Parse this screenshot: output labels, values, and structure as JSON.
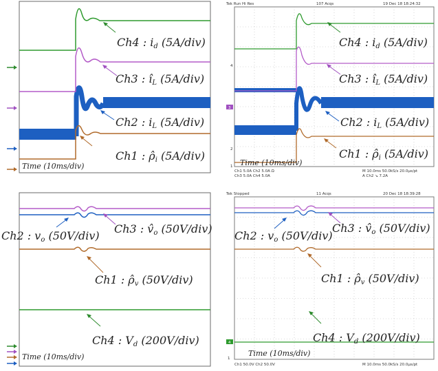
{
  "chart_data": [
    {
      "type": "line",
      "source": "simulation",
      "title": "",
      "xlabel": "Time (10ms/div)",
      "series": [
        {
          "name": "Ch4 : i_d (5A/div)",
          "label": "Ch4 : i_d (5A/div)",
          "color": "#3a9a3a"
        },
        {
          "name": "Ch3 : î_L (5A/div)",
          "label": "Ch3 : î_L (5A/div)",
          "color": "#b45cc8"
        },
        {
          "name": "Ch2 : i_L (5A/div)",
          "label": "Ch2 : i_L (5A/div)",
          "color": "#1d5fc1"
        },
        {
          "name": "Ch1 : ρ̂_i (5A/div)",
          "label": "Ch1 : ρ̂_i (5A/div)",
          "color": "#b06a2a"
        }
      ]
    },
    {
      "type": "line",
      "source": "oscilloscope",
      "title": "",
      "xlabel": "Time (10ms/div)",
      "header": {
        "left": "Tek   Run      Hi Res",
        "middle": "107 Acqs",
        "right": "19 Dec 18 18:24:32"
      },
      "footer": {
        "l1": "Ch1    5.0A         Ch2    5.0A    Ω",
        "l2": "Ch3    5.0A         Ch4    5.0A",
        "r1": "M 10.0ms 50.0kS/s    20.0µs/pt",
        "r2": "A  Ch2  ↘  7.2A"
      },
      "series": [
        {
          "name": "Ch4 : i_d (5A/div)",
          "color": "#3a9a3a"
        },
        {
          "name": "Ch3 : î_L (5A/div)",
          "color": "#b45cc8"
        },
        {
          "name": "Ch2 : i_L (5A/div)",
          "color": "#1d5fc1"
        },
        {
          "name": "Ch1 : ρ̂_i (5A/div)",
          "color": "#b06a2a"
        }
      ]
    },
    {
      "type": "line",
      "source": "simulation",
      "title": "",
      "xlabel": "Time (10ms/div)",
      "series": [
        {
          "name": "Ch3 : v̂_o (50V/div)",
          "color": "#b45cc8"
        },
        {
          "name": "Ch2 : v_o (50V/div)",
          "color": "#1d5fc1"
        },
        {
          "name": "Ch1 : ρ̂_v (50V/div)",
          "color": "#b06a2a"
        },
        {
          "name": "Ch4 : V_d (200V/div)",
          "color": "#3a9a3a"
        }
      ]
    },
    {
      "type": "line",
      "source": "oscilloscope",
      "title": "",
      "xlabel": "Time (10ms/div)",
      "header": {
        "left": "Tek   Stopped",
        "middle": "11 Acqs",
        "right": "20 Dec 18 18:39:28"
      },
      "footer": {
        "l1": "Ch1    50.0V         Ch2    50.0V",
        "l2": "",
        "r1": "M 10.0ms 50.0kS/s    20.0µs/pt",
        "r2": ""
      },
      "series": [
        {
          "name": "Ch3 : v̂_o (50V/div)",
          "color": "#b45cc8"
        },
        {
          "name": "Ch2 : v_o (50V/div)",
          "color": "#1d5fc1"
        },
        {
          "name": "Ch1 : ρ̂_v (50V/div)",
          "color": "#b06a2a"
        },
        {
          "name": "Ch4 : V_d (200V/div)",
          "color": "#3a9a3a"
        }
      ]
    }
  ],
  "labels": {
    "tl": {
      "ch4": {
        "pre": "Ch4 : ",
        "sym": "i",
        "sub": "d",
        "post": "  (5A/div)"
      },
      "ch3": {
        "pre": "Ch3 : ",
        "sym": "î",
        "sub": "L",
        "post": "  (5A/div)"
      },
      "ch2": {
        "pre": "Ch2 : ",
        "sym": "i",
        "sub": "L",
        "post": "  (5A/div)"
      },
      "ch1": {
        "pre": "Ch1 : ",
        "sym": "ρ̂",
        "sub": "i",
        "post": "  (5A/div)"
      },
      "time": "Time (10ms/div)"
    },
    "tr": {
      "ch4": {
        "pre": "Ch4 : ",
        "sym": "i",
        "sub": "d",
        "post": "  (5A/div)"
      },
      "ch3": {
        "pre": "Ch3 : ",
        "sym": "î",
        "sub": "L",
        "post": "  (5A/div)"
      },
      "ch2": {
        "pre": "Ch2 : ",
        "sym": "i",
        "sub": "L",
        "post": "  (5A/div)"
      },
      "ch1": {
        "pre": "Ch1 : ",
        "sym": "ρ̂",
        "sub": "i",
        "post": "  (5A/div)"
      },
      "time": "Time (10ms/div)"
    },
    "bl": {
      "ch3": {
        "pre": "Ch3 : ",
        "sym": "v̂",
        "sub": "o",
        "post": "  (50V/div)"
      },
      "ch2": {
        "pre": "Ch2 : ",
        "sym": "v",
        "sub": "o",
        "post": "  (50V/div)"
      },
      "ch1": {
        "pre": "Ch1 : ",
        "sym": "ρ̂",
        "sub": "v",
        "post": "  (50V/div)"
      },
      "ch4": {
        "pre": "Ch4 : ",
        "sym": "V",
        "sub": "d",
        "post": "  (200V/div)"
      },
      "time": "Time (10ms/div)"
    },
    "br": {
      "ch3": {
        "pre": "Ch3 : ",
        "sym": "v̂",
        "sub": "o",
        "post": "  (50V/div)"
      },
      "ch2": {
        "pre": "Ch2 : ",
        "sym": "v",
        "sub": "o",
        "post": "  (50V/div)"
      },
      "ch1": {
        "pre": "Ch1 : ",
        "sym": "ρ̂",
        "sub": "v",
        "post": "  (50V/div)"
      },
      "ch4": {
        "pre": "Ch4 : ",
        "sym": "V",
        "sub": "d",
        "post": "  (200V/div)"
      },
      "time": "Time (10ms/div)"
    }
  },
  "scope": {
    "tr_marks": {
      "m4": "4",
      "m3": "3",
      "m2": "2",
      "m1": "1"
    },
    "br_marks": {
      "m4": "4",
      "m1": "1"
    }
  }
}
